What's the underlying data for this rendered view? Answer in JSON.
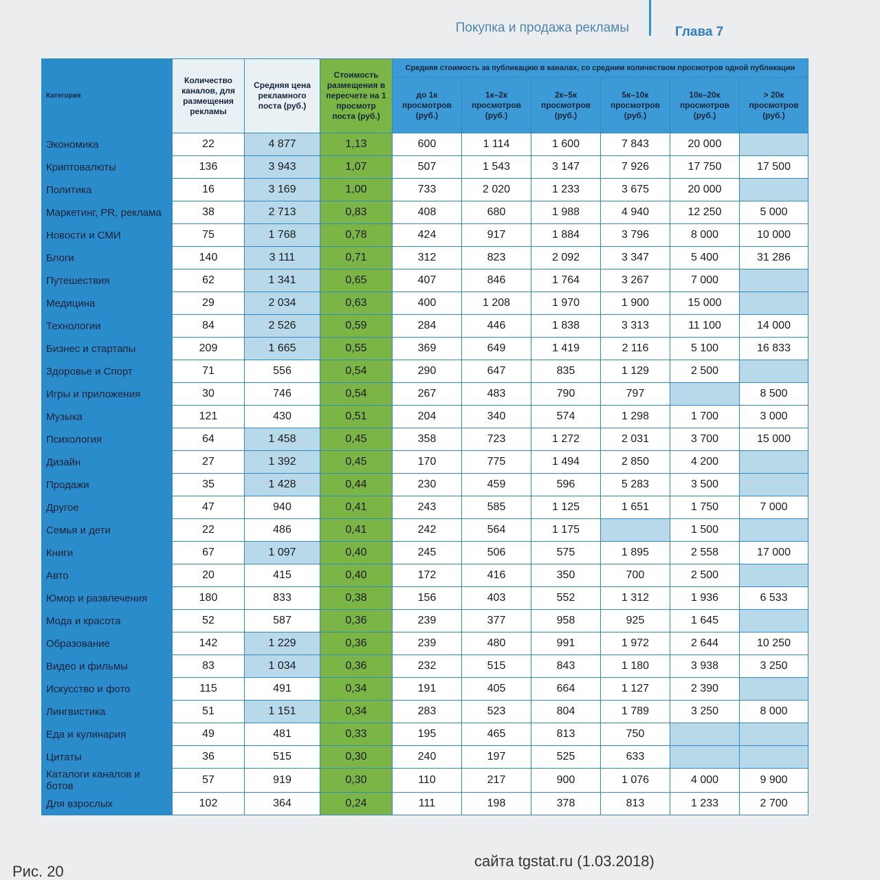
{
  "header": {
    "section": "Покупка и продажа рекламы",
    "chapter": "Глава 7"
  },
  "table": {
    "columns": [
      "Категория",
      "Количество каналов, для размещения рекламы",
      "Средняя цена рекламного поста (руб.)",
      "Стоимость размещения в пересчете на 1 просмотр поста (руб.)"
    ],
    "group_header": "Средняя стоимость за публикацию в каналах, со средним количеством просмотров одной публикации",
    "subcolumns": [
      "до 1к просмотров (руб.)",
      "1к–2к просмотров (руб.)",
      "2к–5к просмотров (руб.)",
      "5к–10к просмотров (руб.)",
      "10к–20к просмотров (руб.)",
      "> 20к просмотров (руб.)"
    ],
    "rows": [
      [
        "Экономика",
        "22",
        "4 877",
        "1,13",
        "600",
        "1 114",
        "1 600",
        "7 843",
        "20 000",
        null
      ],
      [
        "Криптовалюты",
        "136",
        "3 943",
        "1,07",
        "507",
        "1 543",
        "3 147",
        "7 926",
        "17 750",
        "17 500"
      ],
      [
        "Политика",
        "16",
        "3 169",
        "1,00",
        "733",
        "2 020",
        "1 233",
        "3 675",
        "20 000",
        null
      ],
      [
        "Маркетинг, PR, реклама",
        "38",
        "2 713",
        "0,83",
        "408",
        "680",
        "1 988",
        "4 940",
        "12 250",
        "5 000"
      ],
      [
        "Новости и СМИ",
        "75",
        "1 768",
        "0,78",
        "424",
        "917",
        "1 884",
        "3 796",
        "8 000",
        "10 000"
      ],
      [
        "Блоги",
        "140",
        "3 111",
        "0,71",
        "312",
        "823",
        "2 092",
        "3 347",
        "5 400",
        "31 286"
      ],
      [
        "Путешествия",
        "62",
        "1 341",
        "0,65",
        "407",
        "846",
        "1 764",
        "3 267",
        "7 000",
        null
      ],
      [
        "Медицина",
        "29",
        "2 034",
        "0,63",
        "400",
        "1 208",
        "1 970",
        "1 900",
        "15 000",
        null
      ],
      [
        "Технологии",
        "84",
        "2 526",
        "0,59",
        "284",
        "446",
        "1 838",
        "3 313",
        "11 100",
        "14 000"
      ],
      [
        "Бизнес и стартапы",
        "209",
        "1 665",
        "0,55",
        "369",
        "649",
        "1 419",
        "2 116",
        "5 100",
        "16 833"
      ],
      [
        "Здоровье и Спорт",
        "71",
        "556",
        "0,54",
        "290",
        "647",
        "835",
        "1 129",
        "2 500",
        null
      ],
      [
        "Игры и приложения",
        "30",
        "746",
        "0,54",
        "267",
        "483",
        "790",
        "797",
        null,
        "8 500"
      ],
      [
        "Музыка",
        "121",
        "430",
        "0,51",
        "204",
        "340",
        "574",
        "1 298",
        "1 700",
        "3 000"
      ],
      [
        "Психология",
        "64",
        "1 458",
        "0,45",
        "358",
        "723",
        "1 272",
        "2 031",
        "3 700",
        "15 000"
      ],
      [
        "Дизайн",
        "27",
        "1 392",
        "0,45",
        "170",
        "775",
        "1 494",
        "2 850",
        "4 200",
        null
      ],
      [
        "Продажи",
        "35",
        "1 428",
        "0,44",
        "230",
        "459",
        "596",
        "5 283",
        "3 500",
        null
      ],
      [
        "Другое",
        "47",
        "940",
        "0,41",
        "243",
        "585",
        "1 125",
        "1 651",
        "1 750",
        "7 000"
      ],
      [
        "Семья и дети",
        "22",
        "486",
        "0,41",
        "242",
        "564",
        "1 175",
        null,
        "1 500",
        null
      ],
      [
        "Книги",
        "67",
        "1 097",
        "0,40",
        "245",
        "506",
        "575",
        "1 895",
        "2 558",
        "17 000"
      ],
      [
        "Авто",
        "20",
        "415",
        "0,40",
        "172",
        "416",
        "350",
        "700",
        "2 500",
        null
      ],
      [
        "Юмор и развлечения",
        "180",
        "833",
        "0,38",
        "156",
        "403",
        "552",
        "1 312",
        "1 936",
        "6 533"
      ],
      [
        "Мода и красота",
        "52",
        "587",
        "0,36",
        "239",
        "377",
        "958",
        "925",
        "1 645",
        null
      ],
      [
        "Образование",
        "142",
        "1 229",
        "0,36",
        "239",
        "480",
        "991",
        "1 972",
        "2 644",
        "10 250"
      ],
      [
        "Видео и фильмы",
        "83",
        "1 034",
        "0,36",
        "232",
        "515",
        "843",
        "1 180",
        "3 938",
        "3 250"
      ],
      [
        "Искусство и фото",
        "115",
        "491",
        "0,34",
        "191",
        "405",
        "664",
        "1 127",
        "2 390",
        null
      ],
      [
        "Лингвистика",
        "51",
        "1 151",
        "0,34",
        "283",
        "523",
        "804",
        "1 789",
        "3 250",
        "8 000"
      ],
      [
        "Еда и кулинария",
        "49",
        "481",
        "0,33",
        "195",
        "465",
        "813",
        "750",
        null,
        null
      ],
      [
        "Цитаты",
        "36",
        "515",
        "0,30",
        "240",
        "197",
        "525",
        "633",
        null,
        null
      ],
      [
        "Каталоги каналов и ботов",
        "57",
        "919",
        "0,30",
        "110",
        "217",
        "900",
        "1 076",
        "4 000",
        "9 900"
      ],
      [
        "Для взрослых",
        "102",
        "364",
        "0,24",
        "111",
        "198",
        "378",
        "813",
        "1 233",
        "2 700"
      ]
    ]
  },
  "caption": {
    "figure": "Рис. 20",
    "source": "сайта tgstat.ru (1.03.2018)"
  }
}
